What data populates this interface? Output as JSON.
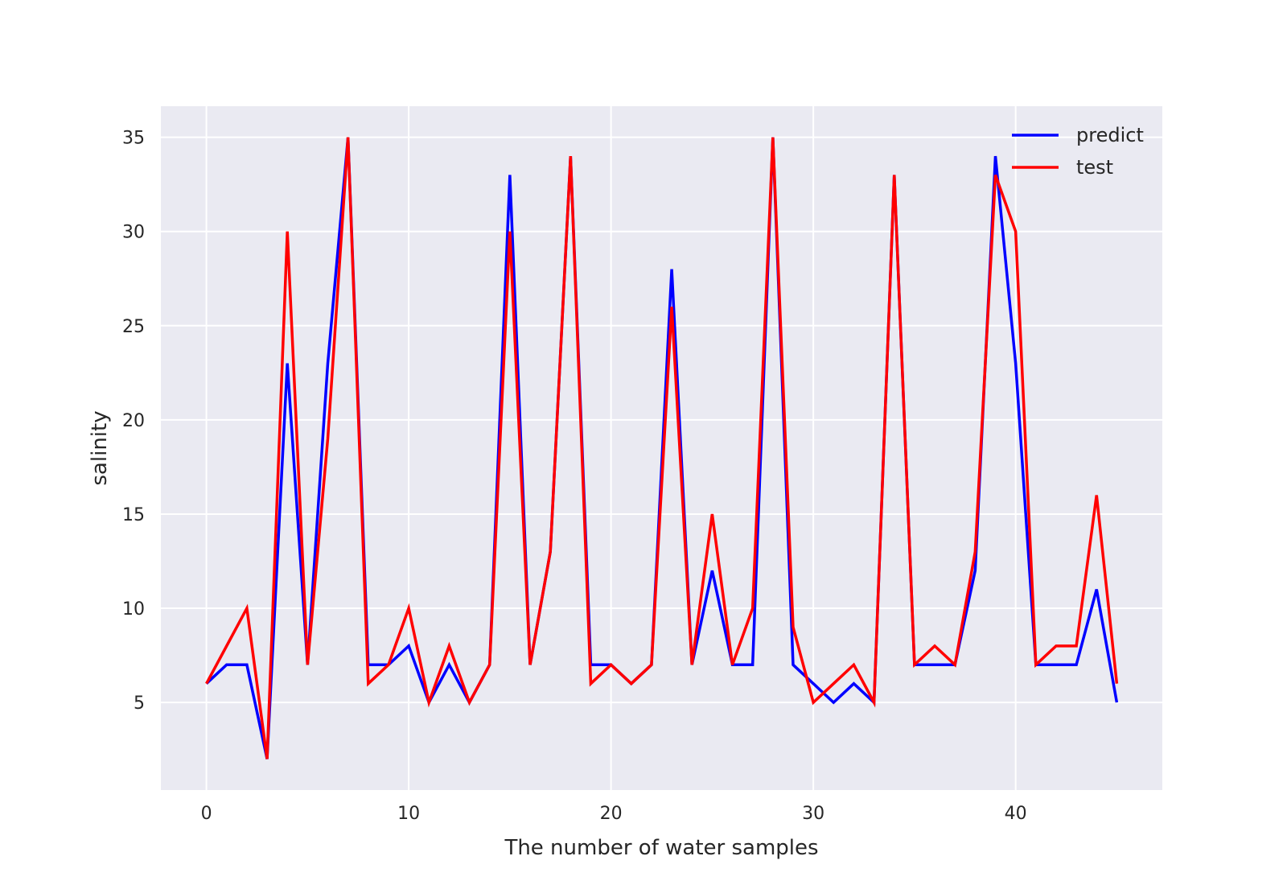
{
  "chart_data": {
    "type": "line",
    "title": "",
    "xlabel": "The number of water samples",
    "ylabel": "salinity",
    "xlim": [
      -2.25,
      47.25
    ],
    "ylim": [
      0.35,
      36.65
    ],
    "xticks": [
      0,
      10,
      20,
      30,
      40
    ],
    "yticks": [
      5,
      10,
      15,
      20,
      25,
      30,
      35
    ],
    "grid": true,
    "legend_position": "top-right",
    "x": [
      0,
      1,
      2,
      3,
      4,
      5,
      6,
      7,
      8,
      9,
      10,
      11,
      12,
      13,
      14,
      15,
      16,
      17,
      18,
      19,
      20,
      21,
      22,
      23,
      24,
      25,
      26,
      27,
      28,
      29,
      30,
      31,
      32,
      33,
      34,
      35,
      36,
      37,
      38,
      39,
      40,
      41,
      42,
      43,
      44,
      45
    ],
    "series": [
      {
        "name": "predict",
        "color": "#0000ff",
        "values": [
          6,
          7,
          7,
          2,
          23,
          7,
          23,
          35,
          7,
          7,
          8,
          5,
          7,
          5,
          7,
          33,
          7,
          13,
          34,
          7,
          7,
          6,
          7,
          28,
          7,
          12,
          7,
          7,
          35,
          7,
          6,
          5,
          6,
          5,
          33,
          7,
          7,
          7,
          12,
          34,
          23,
          7,
          7,
          7,
          11,
          5
        ]
      },
      {
        "name": "test",
        "color": "#ff0000",
        "values": [
          6,
          8,
          10,
          2,
          30,
          7,
          19,
          35,
          6,
          7,
          10,
          5,
          8,
          5,
          7,
          30,
          7,
          13,
          34,
          6,
          7,
          6,
          7,
          26,
          7,
          15,
          7,
          10,
          35,
          9,
          5,
          6,
          7,
          5,
          33,
          7,
          8,
          7,
          13,
          33,
          30,
          7,
          8,
          8,
          16,
          6
        ]
      }
    ]
  }
}
